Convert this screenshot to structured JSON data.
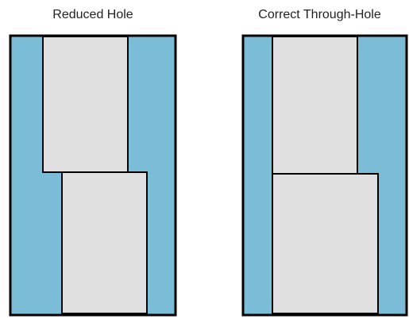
{
  "panels": [
    {
      "title": "Reduced Hole",
      "colors": {
        "board": "#7bbdd6",
        "pin": "#e0e0e0",
        "outline": "#000000"
      }
    },
    {
      "title": "Correct Through-Hole",
      "colors": {
        "board": "#7bbdd6",
        "pin": "#e0e0e0",
        "outline": "#000000"
      }
    }
  ]
}
